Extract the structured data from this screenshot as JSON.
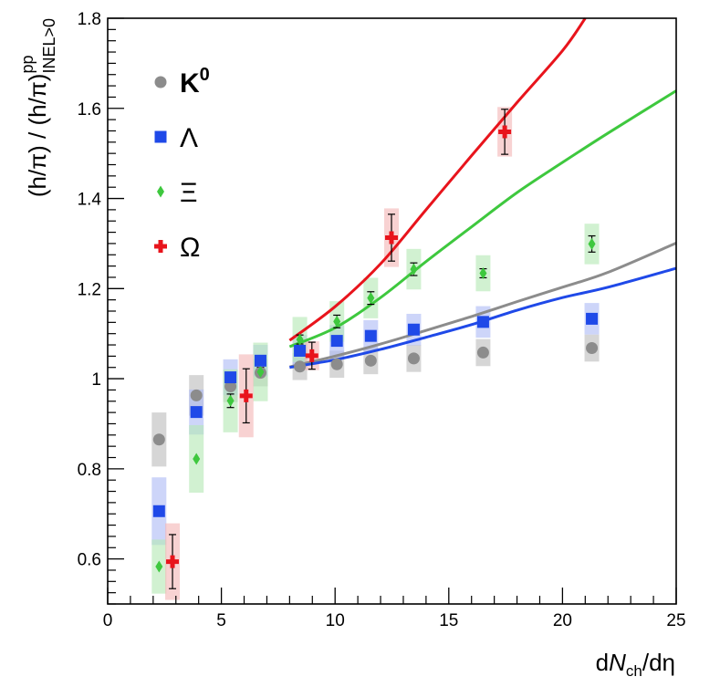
{
  "chart_data": {
    "type": "scatter",
    "xlabel": {
      "prefix": "d",
      "var": "N",
      "sub": "ch",
      "suffix": "/dη"
    },
    "ylabel": {
      "main": "(h/π) / (h/π)",
      "sup": "pp",
      "sub": "INEL>0"
    },
    "xlim": [
      0,
      25
    ],
    "ylim": [
      0.5,
      1.8
    ],
    "xticks": [
      0,
      5,
      10,
      15,
      20,
      25
    ],
    "xtick_labels": [
      "0",
      "5",
      "10",
      "15",
      "20",
      "25"
    ],
    "yticks": [
      0.6,
      0.8,
      1.0,
      1.2,
      1.4,
      1.6,
      1.8
    ],
    "ytick_labels": [
      "0.6",
      "0.8",
      "1",
      "1.2",
      "1.4",
      "1.6",
      "1.8"
    ],
    "legend_position": "top-left",
    "series": [
      {
        "name": "K0",
        "label_main": "K",
        "label_sup": "0",
        "marker": "circle",
        "color": "#8c8c8c",
        "box_color": "#bdbdbd",
        "x": [
          2.26,
          3.9,
          5.4,
          6.72,
          8.45,
          10.08,
          11.57,
          13.46,
          16.51,
          21.29
        ],
        "y": [
          0.865,
          0.963,
          0.983,
          1.013,
          1.027,
          1.032,
          1.04,
          1.045,
          1.058,
          1.068
        ],
        "stat_err": [
          0.004,
          0.004,
          0.004,
          0.004,
          0.004,
          0.004,
          0.004,
          0.004,
          0.004,
          0.004
        ],
        "sys_err": [
          0.06,
          0.045,
          0.035,
          0.03,
          0.03,
          0.03,
          0.03,
          0.03,
          0.03,
          0.03
        ],
        "curve_x": [
          8,
          10,
          12,
          14,
          16,
          18,
          20,
          22,
          25
        ],
        "curve_y": [
          1.026,
          1.05,
          1.077,
          1.107,
          1.138,
          1.171,
          1.203,
          1.236,
          1.301
        ]
      },
      {
        "name": "Lambda",
        "label_main": "Λ",
        "label_sup": "",
        "marker": "square",
        "color": "#1f49e8",
        "box_color": "#aebcf5",
        "x": [
          2.26,
          3.9,
          5.4,
          6.72,
          8.45,
          10.08,
          11.57,
          13.46,
          16.51,
          21.29
        ],
        "y": [
          0.706,
          0.926,
          1.003,
          1.04,
          1.062,
          1.084,
          1.095,
          1.109,
          1.126,
          1.133
        ],
        "stat_err": [
          0.006,
          0.006,
          0.006,
          0.006,
          0.006,
          0.006,
          0.006,
          0.006,
          0.006,
          0.006
        ],
        "sys_err": [
          0.075,
          0.05,
          0.04,
          0.035,
          0.035,
          0.035,
          0.035,
          0.035,
          0.035,
          0.035
        ],
        "curve_x": [
          8,
          10,
          12,
          14,
          16,
          18,
          20,
          22,
          25
        ],
        "curve_y": [
          1.025,
          1.042,
          1.065,
          1.092,
          1.12,
          1.152,
          1.18,
          1.203,
          1.245
        ]
      },
      {
        "name": "Xi",
        "label_main": "Ξ",
        "label_sup": "",
        "marker": "diamond",
        "color": "#3ec83e",
        "box_color": "#b5e8b5",
        "x": [
          2.26,
          3.9,
          5.4,
          6.72,
          8.45,
          10.08,
          11.57,
          13.46,
          16.51,
          21.29
        ],
        "y": [
          0.583,
          0.822,
          0.951,
          1.015,
          1.087,
          1.127,
          1.179,
          1.243,
          1.234,
          1.299
        ],
        "stat_err": [
          0.008,
          0.008,
          0.015,
          0.01,
          0.01,
          0.014,
          0.014,
          0.014,
          0.01,
          0.018
        ],
        "sys_err": [
          0.06,
          0.075,
          0.07,
          0.065,
          0.05,
          0.045,
          0.045,
          0.045,
          0.04,
          0.045
        ],
        "curve_x": [
          8,
          10,
          12,
          14,
          16,
          18,
          20,
          22,
          25
        ],
        "curve_y": [
          1.071,
          1.113,
          1.18,
          1.26,
          1.337,
          1.413,
          1.48,
          1.545,
          1.639
        ]
      },
      {
        "name": "Omega",
        "label_main": "Ω",
        "label_sup": "",
        "marker": "cross",
        "color": "#e8141c",
        "box_color": "#f4b6b6",
        "x": [
          2.85,
          6.09,
          8.98,
          12.48,
          17.46
        ],
        "y": [
          0.594,
          0.962,
          1.051,
          1.313,
          1.548
        ],
        "stat_err": [
          0.06,
          0.06,
          0.03,
          0.052,
          0.05
        ],
        "sys_err": [
          0.085,
          0.092,
          0.032,
          0.065,
          0.055
        ],
        "curve_x": [
          8,
          10,
          12,
          14,
          16,
          18,
          20,
          21
        ],
        "curve_y": [
          1.085,
          1.16,
          1.255,
          1.375,
          1.495,
          1.613,
          1.728,
          1.8
        ]
      }
    ]
  }
}
